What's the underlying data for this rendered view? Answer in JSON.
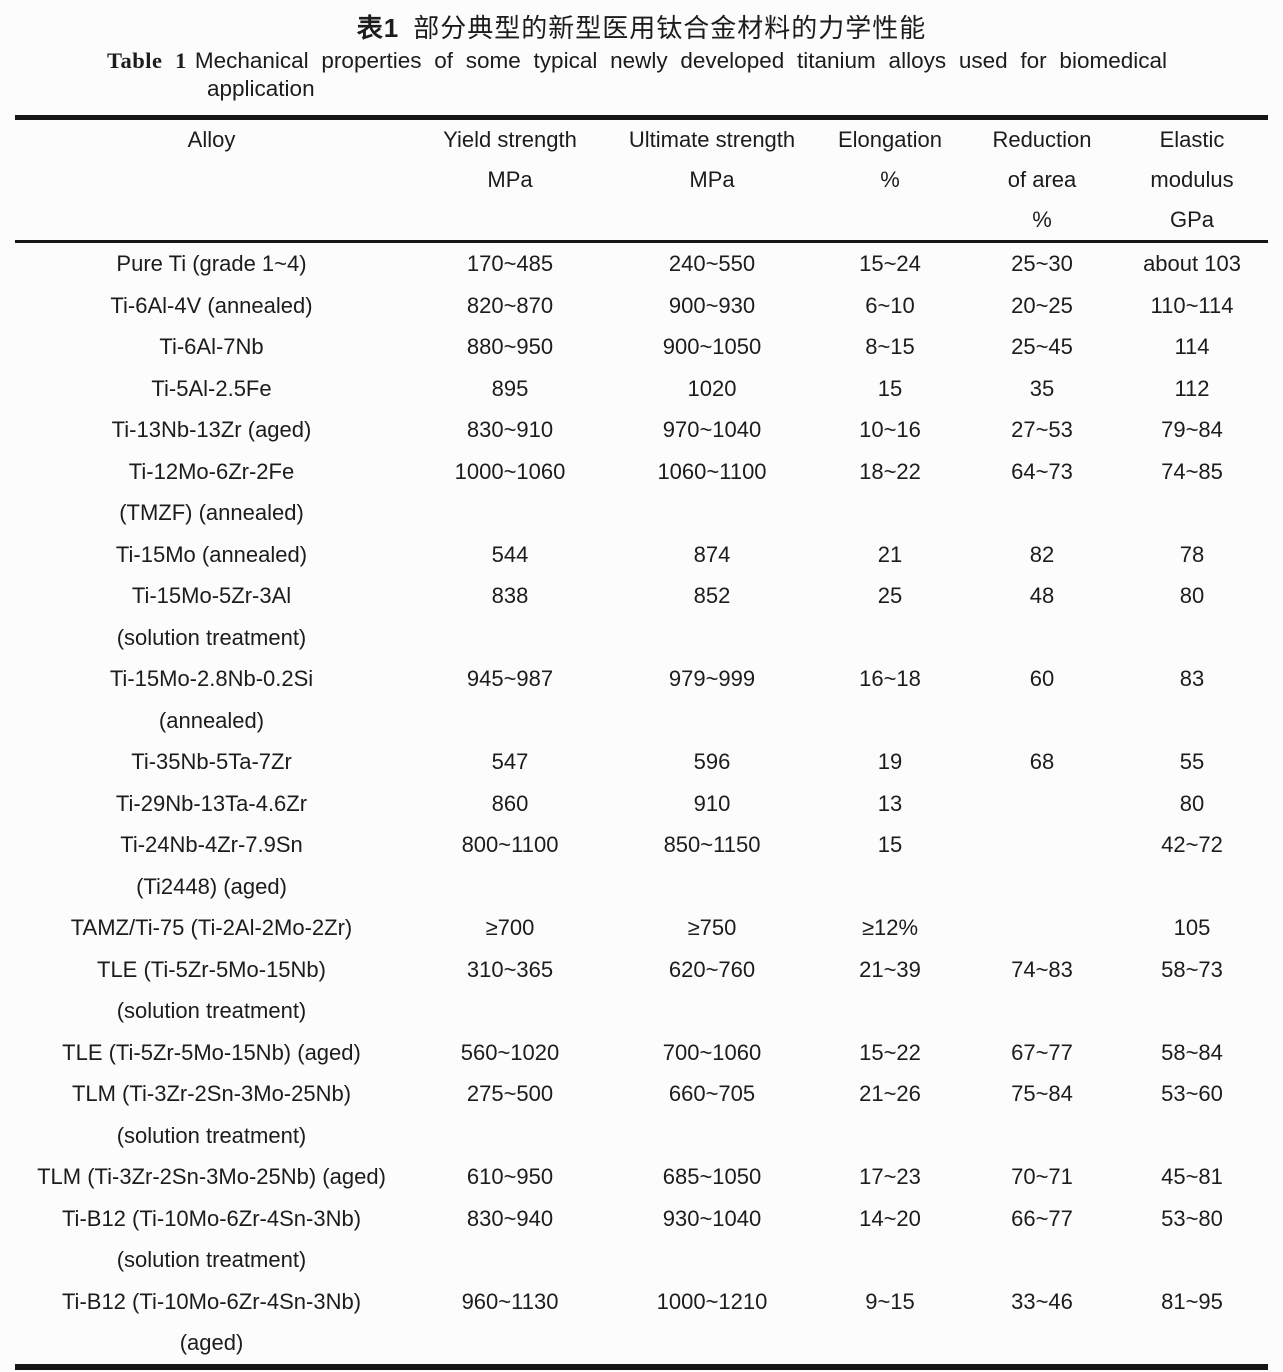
{
  "title": {
    "zh_prefix": "表1",
    "zh_text": "部分典型的新型医用钛合金材料的力学性能",
    "en_prefix": "Table 1",
    "en_line1": "Mechanical properties of some typical newly developed titanium alloys used for biomedical",
    "en_line2": "application"
  },
  "colors": {
    "text": "#1c1c1c",
    "rule": "#161616",
    "background": "#fcfcfc"
  },
  "chart_data": {
    "type": "table",
    "title": "Table 1 Mechanical properties of some typical newly developed titanium alloys used for biomedical application"
  },
  "table": {
    "columns": [
      {
        "id": "alloy",
        "lines": [
          "Alloy"
        ]
      },
      {
        "id": "yield",
        "lines": [
          "Yield strength",
          "MPa"
        ]
      },
      {
        "id": "ultimate",
        "lines": [
          "Ultimate strength",
          "MPa"
        ]
      },
      {
        "id": "elongation",
        "lines": [
          "Elongation",
          "%"
        ]
      },
      {
        "id": "reduction",
        "lines": [
          "Reduction",
          "of area",
          "%"
        ]
      },
      {
        "id": "modulus",
        "lines": [
          "Elastic",
          "modulus",
          "GPa"
        ]
      }
    ],
    "rows": [
      {
        "alloy": "Pure Ti (grade 1~4)",
        "alloy_note": "",
        "values": [
          "170~485",
          "240~550",
          "15~24",
          "25~30",
          "about 103"
        ]
      },
      {
        "alloy": "Ti-6Al-4V (annealed)",
        "alloy_note": "",
        "values": [
          "820~870",
          "900~930",
          "6~10",
          "20~25",
          "110~114"
        ]
      },
      {
        "alloy": "Ti-6Al-7Nb",
        "alloy_note": "",
        "values": [
          "880~950",
          "900~1050",
          "8~15",
          "25~45",
          "114"
        ]
      },
      {
        "alloy": "Ti-5Al-2.5Fe",
        "alloy_note": "",
        "values": [
          "895",
          "1020",
          "15",
          "35",
          "112"
        ]
      },
      {
        "alloy": "Ti-13Nb-13Zr (aged)",
        "alloy_note": "",
        "values": [
          "830~910",
          "970~1040",
          "10~16",
          "27~53",
          "79~84"
        ]
      },
      {
        "alloy": "Ti-12Mo-6Zr-2Fe",
        "alloy_note": "(TMZF) (annealed)",
        "values": [
          "1000~1060",
          "1060~1100",
          "18~22",
          "64~73",
          "74~85"
        ]
      },
      {
        "alloy": "Ti-15Mo (annealed)",
        "alloy_note": "",
        "values": [
          "544",
          "874",
          "21",
          "82",
          "78"
        ]
      },
      {
        "alloy": "Ti-15Mo-5Zr-3Al",
        "alloy_note": "(solution treatment)",
        "values": [
          "838",
          "852",
          "25",
          "48",
          "80"
        ]
      },
      {
        "alloy": "Ti-15Mo-2.8Nb-0.2Si",
        "alloy_note": "(annealed)",
        "values": [
          "945~987",
          "979~999",
          "16~18",
          "60",
          "83"
        ]
      },
      {
        "alloy": "Ti-35Nb-5Ta-7Zr",
        "alloy_note": "",
        "values": [
          "547",
          "596",
          "19",
          "68",
          "55"
        ]
      },
      {
        "alloy": "Ti-29Nb-13Ta-4.6Zr",
        "alloy_note": "",
        "values": [
          "860",
          "910",
          "13",
          "",
          "80"
        ]
      },
      {
        "alloy": "Ti-24Nb-4Zr-7.9Sn",
        "alloy_note": "(Ti2448) (aged)",
        "values": [
          "800~1100",
          "850~1150",
          "15",
          "",
          "42~72"
        ]
      },
      {
        "alloy": "TAMZ/Ti-75 (Ti-2Al-2Mo-2Zr)",
        "alloy_note": "",
        "values": [
          "≥700",
          "≥750",
          "≥12%",
          "",
          "105"
        ]
      },
      {
        "alloy": "TLE (Ti-5Zr-5Mo-15Nb)",
        "alloy_note": "(solution treatment)",
        "values": [
          "310~365",
          "620~760",
          "21~39",
          "74~83",
          "58~73"
        ]
      },
      {
        "alloy": "TLE (Ti-5Zr-5Mo-15Nb) (aged)",
        "alloy_note": "",
        "values": [
          "560~1020",
          "700~1060",
          "15~22",
          "67~77",
          "58~84"
        ]
      },
      {
        "alloy": "TLM (Ti-3Zr-2Sn-3Mo-25Nb)",
        "alloy_note": "(solution treatment)",
        "values": [
          "275~500",
          "660~705",
          "21~26",
          "75~84",
          "53~60"
        ]
      },
      {
        "alloy": "TLM (Ti-3Zr-2Sn-3Mo-25Nb) (aged)",
        "alloy_note": "",
        "values": [
          "610~950",
          "685~1050",
          "17~23",
          "70~71",
          "45~81"
        ]
      },
      {
        "alloy": "Ti-B12 (Ti-10Mo-6Zr-4Sn-3Nb)",
        "alloy_note": "(solution treatment)",
        "values": [
          "830~940",
          "930~1040",
          "14~20",
          "66~77",
          "53~80"
        ]
      },
      {
        "alloy": "Ti-B12 (Ti-10Mo-6Zr-4Sn-3Nb)",
        "alloy_note": "(aged)",
        "values": [
          "960~1130",
          "1000~1210",
          "9~15",
          "33~46",
          "81~95"
        ]
      }
    ]
  }
}
